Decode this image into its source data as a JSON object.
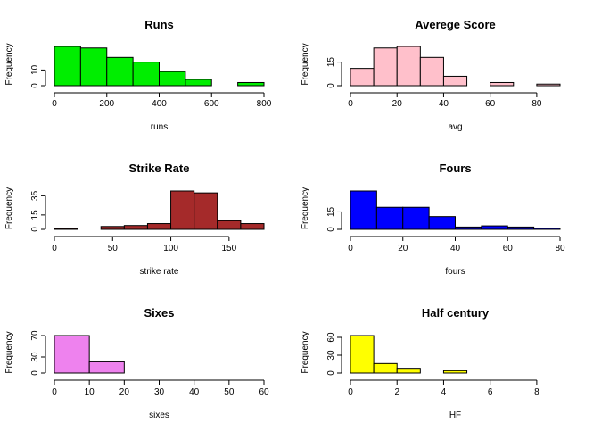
{
  "chart_data": [
    {
      "type": "bar",
      "title": "Runs",
      "xlabel": "runs",
      "ylabel": "Frequency",
      "bins": [
        [
          0,
          100
        ],
        [
          100,
          200
        ],
        [
          200,
          300
        ],
        [
          300,
          400
        ],
        [
          400,
          500
        ],
        [
          500,
          600
        ],
        [
          600,
          700
        ],
        [
          700,
          800
        ]
      ],
      "values": [
        25,
        24,
        18,
        15,
        9,
        4,
        0,
        2
      ],
      "xlim": [
        0,
        800
      ],
      "ylim": [
        0,
        25
      ],
      "xticks": [
        "0",
        "200",
        "400",
        "600",
        "800"
      ],
      "yticks": [
        "0",
        "10"
      ],
      "color": "#00ee00"
    },
    {
      "type": "bar",
      "title": "Averege Score",
      "xlabel": "avg",
      "ylabel": "Frequency",
      "bins": [
        [
          0,
          10
        ],
        [
          10,
          20
        ],
        [
          20,
          30
        ],
        [
          30,
          40
        ],
        [
          40,
          50
        ],
        [
          50,
          60
        ],
        [
          60,
          70
        ],
        [
          70,
          80
        ],
        [
          80,
          90
        ]
      ],
      "values": [
        11,
        24,
        25,
        18,
        6,
        0,
        2,
        0,
        1
      ],
      "xlim": [
        0,
        90
      ],
      "ylim": [
        0,
        25
      ],
      "xticks": [
        "0",
        "20",
        "40",
        "60",
        "80"
      ],
      "yticks": [
        "0",
        "15"
      ],
      "color": "#ffc0cb"
    },
    {
      "type": "bar",
      "title": "Strike Rate",
      "xlabel": "strike rate",
      "ylabel": "Frequency",
      "bins": [
        [
          0,
          20
        ],
        [
          20,
          40
        ],
        [
          40,
          60
        ],
        [
          60,
          80
        ],
        [
          80,
          100
        ],
        [
          100,
          120
        ],
        [
          120,
          140
        ],
        [
          140,
          160
        ],
        [
          160,
          180
        ]
      ],
      "values": [
        1,
        0,
        3,
        4,
        6,
        40,
        38,
        9,
        6
      ],
      "xlim": [
        0,
        180
      ],
      "ylim": [
        0,
        40
      ],
      "xticks": [
        "0",
        "50",
        "100",
        "150"
      ],
      "yticks": [
        "0",
        "15",
        "35"
      ],
      "color": "#a52a2a"
    },
    {
      "type": "bar",
      "title": "Fours",
      "xlabel": "fours",
      "ylabel": "Frequency",
      "bins": [
        [
          0,
          10
        ],
        [
          10,
          20
        ],
        [
          20,
          30
        ],
        [
          30,
          40
        ],
        [
          40,
          50
        ],
        [
          50,
          60
        ],
        [
          60,
          70
        ],
        [
          70,
          80
        ]
      ],
      "values": [
        33,
        19,
        19,
        11,
        2,
        3,
        2,
        1
      ],
      "xlim": [
        0,
        80
      ],
      "ylim": [
        0,
        33
      ],
      "xticks": [
        "0",
        "20",
        "40",
        "60",
        "80"
      ],
      "yticks": [
        "0",
        "15"
      ],
      "color": "#0000ff"
    },
    {
      "type": "bar",
      "title": "Sixes",
      "xlabel": "sixes",
      "ylabel": "Frequency",
      "bins": [
        [
          0,
          10
        ],
        [
          10,
          20
        ],
        [
          20,
          30
        ],
        [
          30,
          40
        ],
        [
          40,
          50
        ],
        [
          50,
          60
        ]
      ],
      "values": [
        70,
        21,
        0,
        0,
        0,
        0
      ],
      "xlim": [
        0,
        60
      ],
      "ylim": [
        0,
        70
      ],
      "xticks": [
        "0",
        "10",
        "20",
        "30",
        "40",
        "50",
        "60"
      ],
      "yticks": [
        "0",
        "30",
        "70"
      ],
      "color": "#ee82ee"
    },
    {
      "type": "bar",
      "title": "Half century",
      "xlabel": "HF",
      "ylabel": "Frequency",
      "bins": [
        [
          0,
          1
        ],
        [
          1,
          2
        ],
        [
          2,
          3
        ],
        [
          3,
          4
        ],
        [
          4,
          5
        ],
        [
          5,
          6
        ],
        [
          6,
          7
        ],
        [
          7,
          8
        ],
        [
          8,
          9
        ]
      ],
      "values": [
        63,
        16,
        8,
        0,
        4,
        0,
        0,
        0,
        0
      ],
      "xlim": [
        0,
        9
      ],
      "ylim": [
        0,
        63
      ],
      "xticks": [
        "0",
        "2",
        "4",
        "6",
        "8"
      ],
      "yticks": [
        "0",
        "30",
        "60"
      ],
      "color": "#ffff00"
    }
  ]
}
